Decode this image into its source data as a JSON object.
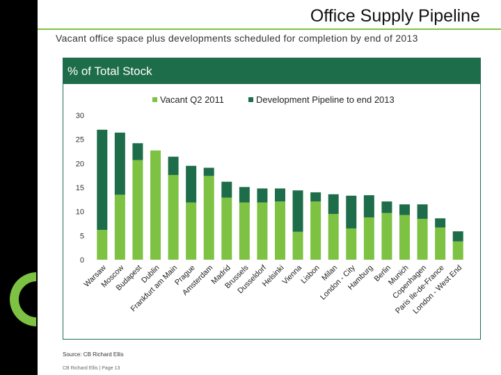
{
  "slide": {
    "title": "Office Supply Pipeline",
    "subtitle": "Vacant office space plus developments scheduled for completion by end of 2013",
    "source": "Source: CB Richard Ellis",
    "footer": "CB Richard Ellis | Page 13"
  },
  "colors": {
    "vacant": "#7dc242",
    "pipeline": "#1e6d4a",
    "header": "#1e6d4a",
    "accent": "#7dc242"
  },
  "chart_data": {
    "type": "bar",
    "stacked": true,
    "title": "% of Total Stock",
    "xlabel": "",
    "ylabel": "",
    "ylim": [
      0,
      30
    ],
    "yticks": [
      0,
      5,
      10,
      15,
      20,
      25,
      30
    ],
    "grid": false,
    "legend_position": "top-center",
    "categories": [
      "Warsaw",
      "Moscow",
      "Budapest",
      "Dublin",
      "Frankfurt am Main",
      "Prague",
      "Amsterdam",
      "Madrid",
      "Brussels",
      "Dusseldorf",
      "Helsinki",
      "Vienna",
      "Lisbon",
      "Milan",
      "London - City",
      "Hamburg",
      "Berlin",
      "Munich",
      "Copenhagen",
      "Paris Ile-de-France",
      "London - West End"
    ],
    "series": [
      {
        "name": "Vacant Q2 2011",
        "values": [
          6.2,
          13.5,
          20.7,
          22.7,
          17.6,
          11.9,
          17.4,
          12.9,
          11.9,
          11.9,
          12.1,
          5.8,
          12.1,
          9.5,
          6.5,
          8.8,
          9.7,
          9.3,
          8.5,
          6.7,
          3.8
        ]
      },
      {
        "name": "Development Pipeline to end 2013",
        "values": [
          20.8,
          12.9,
          3.5,
          0,
          3.8,
          7.6,
          1.7,
          3.3,
          3.2,
          2.9,
          2.7,
          8.6,
          1.9,
          4.1,
          6.8,
          4.6,
          2.4,
          2.2,
          3.0,
          1.9,
          2.1
        ]
      }
    ]
  }
}
